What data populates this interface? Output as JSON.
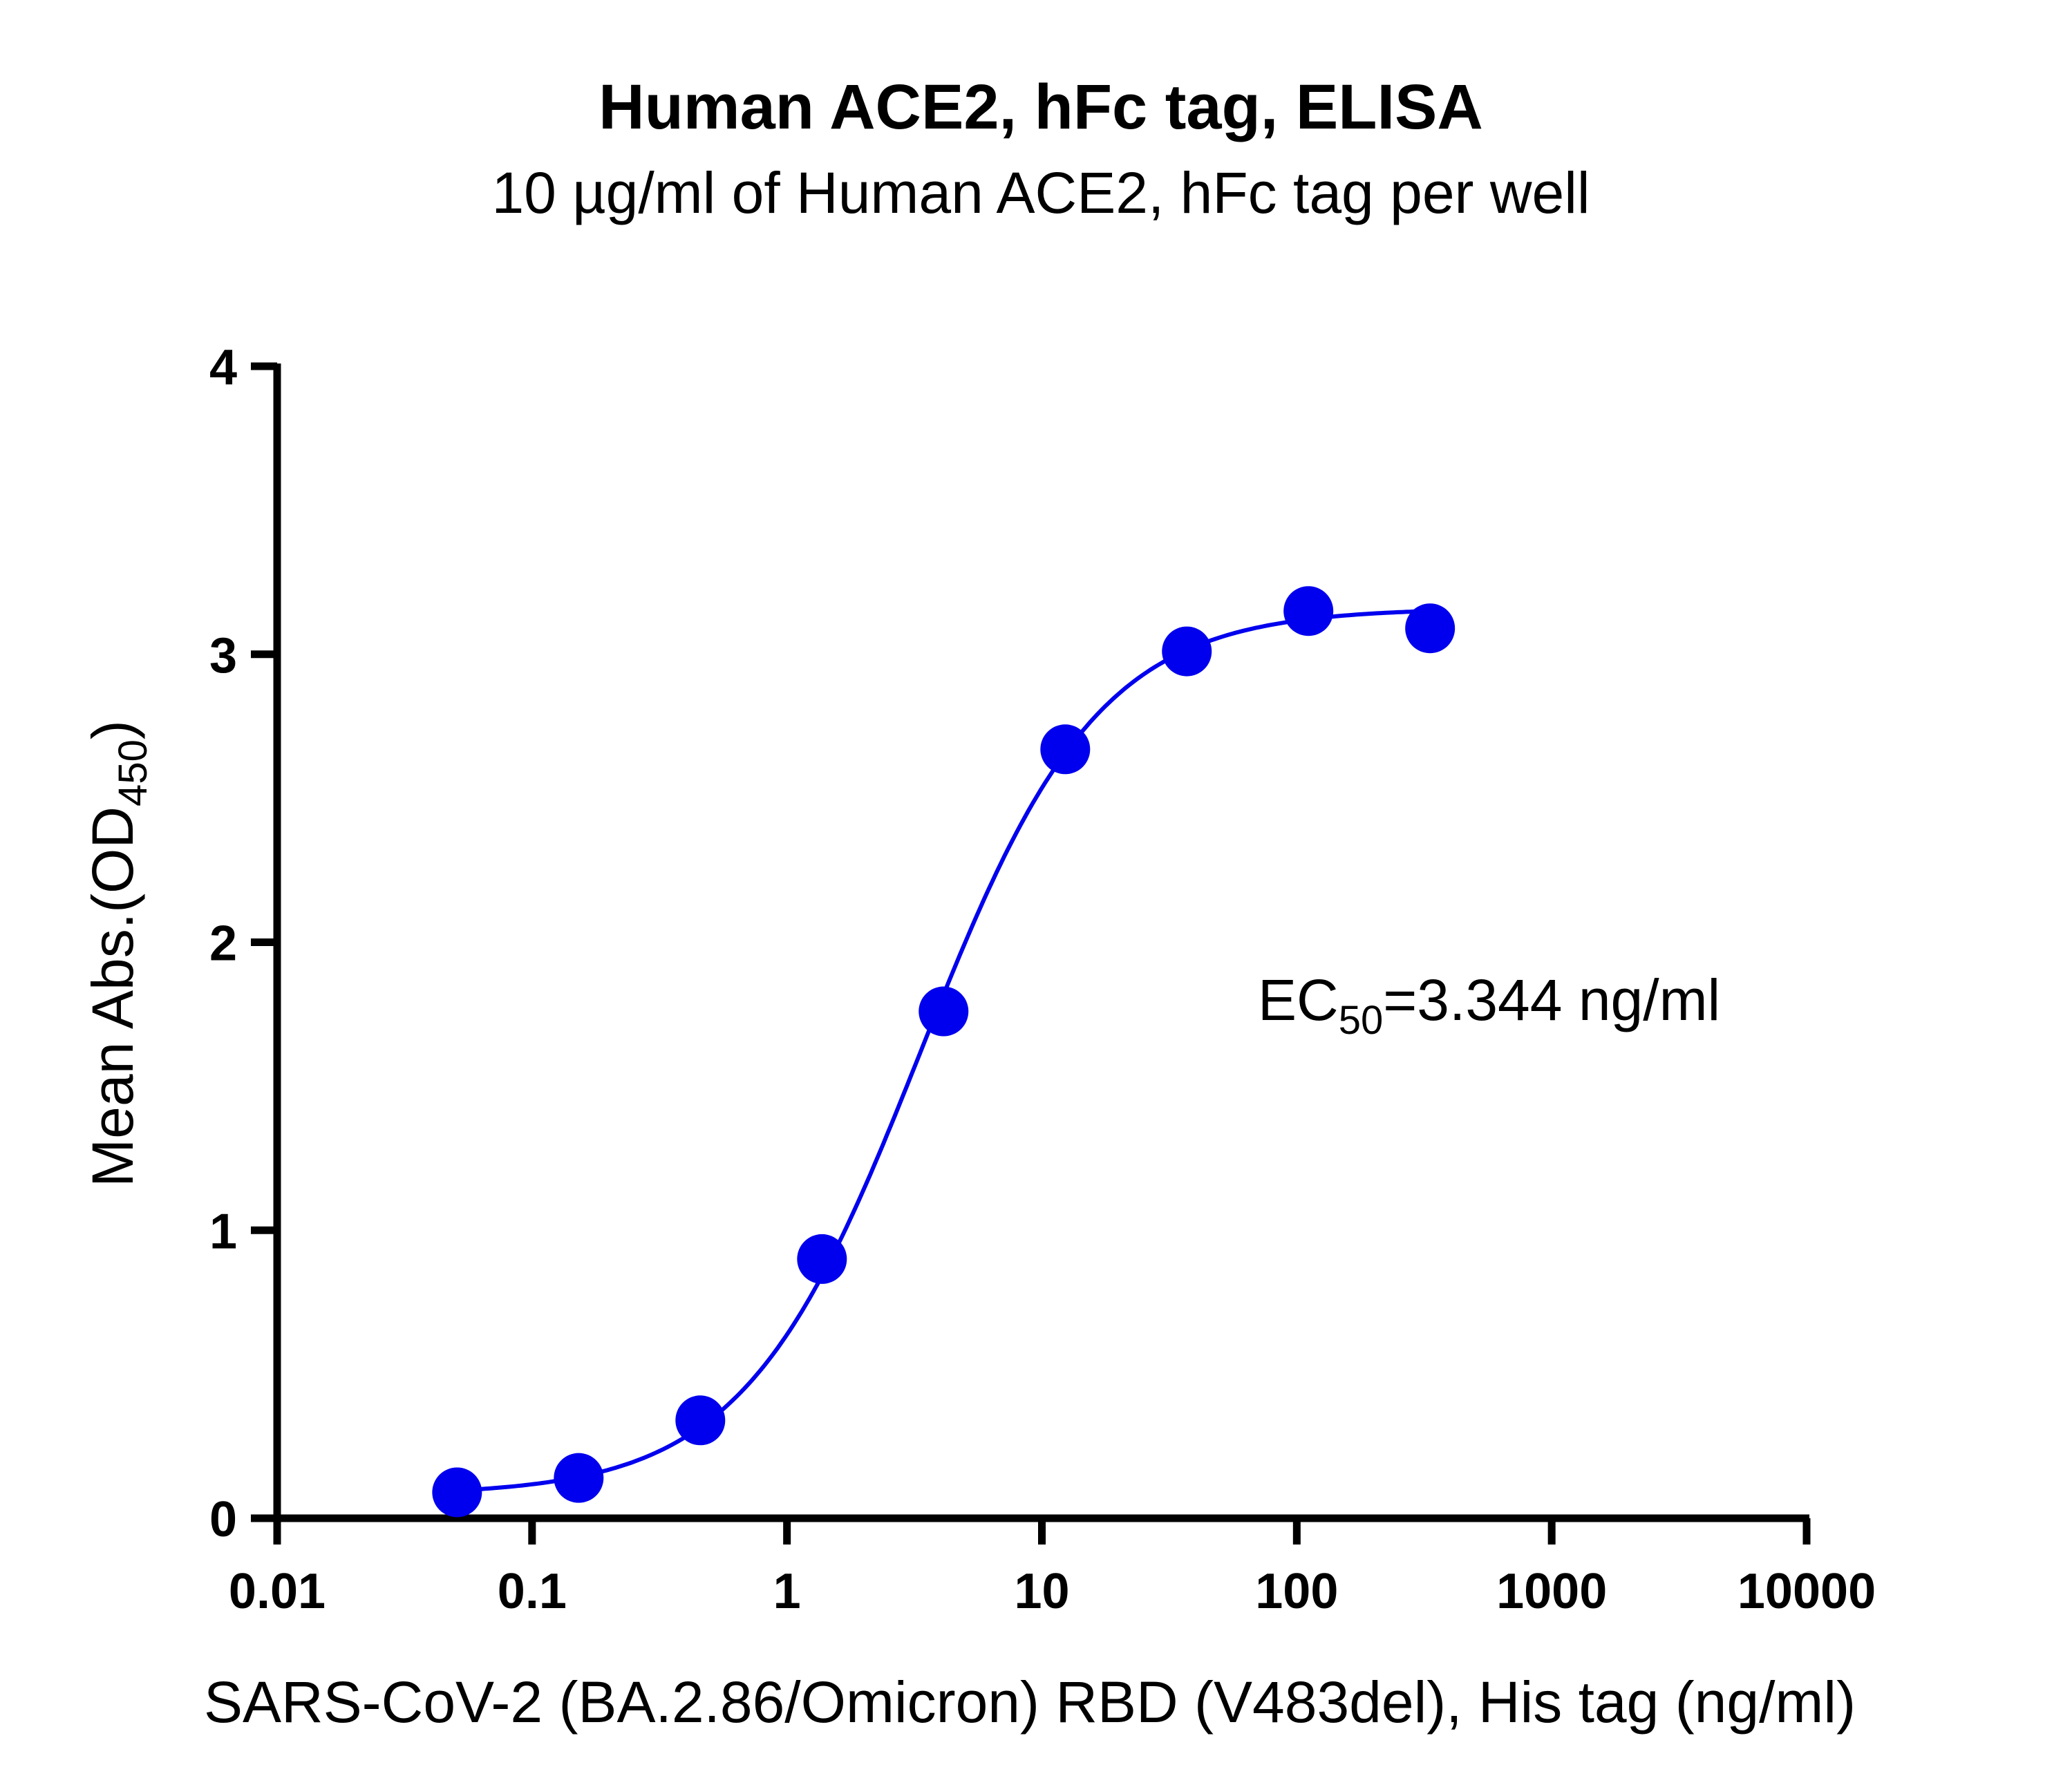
{
  "chart_data": {
    "type": "scatter",
    "title": "Human ACE2, hFc tag, ELISA",
    "subtitle": "10 µg/ml of Human ACE2, hFc tag per well",
    "xlabel": "SARS-CoV-2 (BA.2.86/Omicron) RBD (V483del), His tag (ng/ml)",
    "ylabel": {
      "main": "Mean Abs.(OD",
      "subscript": "450",
      "close": ")"
    },
    "x_scale": "log",
    "xlim": [
      0.01,
      10000
    ],
    "ylim": [
      0,
      4
    ],
    "x_ticks": [
      0.01,
      0.1,
      1,
      10,
      100,
      1000,
      10000
    ],
    "x_tick_labels": [
      "0.01",
      "0.1",
      "1",
      "10",
      "100",
      "1000",
      "10000"
    ],
    "y_ticks": [
      0,
      1,
      2,
      3,
      4
    ],
    "y_tick_labels": [
      "0",
      "1",
      "2",
      "3",
      "4"
    ],
    "grid": false,
    "series": [
      {
        "color": "#0000ee",
        "x": [
          0.0508,
          0.1524,
          0.4572,
          1.372,
          4.115,
          12.35,
          37.04,
          111.1,
          333.3
        ],
        "y": [
          0.09,
          0.14,
          0.34,
          0.9,
          1.76,
          2.67,
          3.01,
          3.15,
          3.09
        ],
        "fit": {
          "model": "4PL",
          "bottom": 0.08,
          "top": 3.16,
          "ec50": 3.344,
          "hill": 1.25
        }
      }
    ],
    "annotation": {
      "prefix": "EC",
      "subscript": "50",
      "suffix": "=3.344 ng/ml"
    }
  }
}
